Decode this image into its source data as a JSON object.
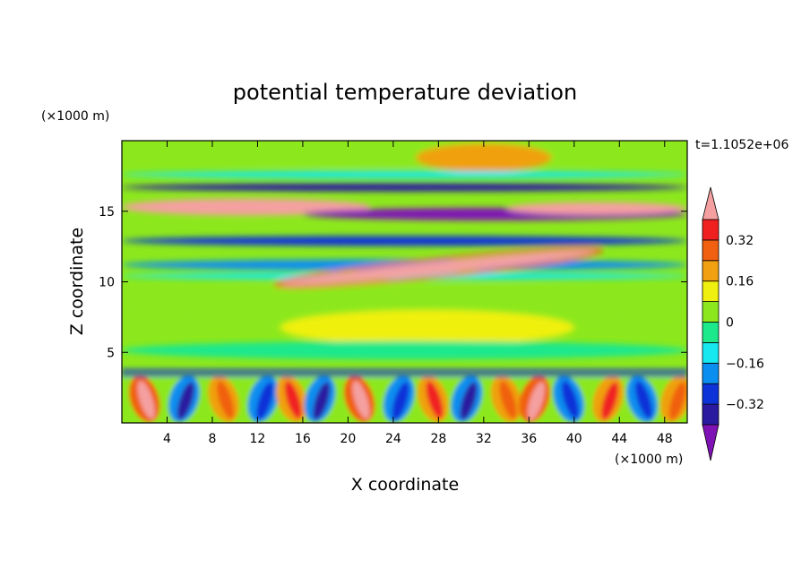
{
  "chart_data": {
    "type": "heatmap",
    "title": "potential temperature deviation",
    "xlabel": "X coordinate",
    "ylabel": "Z coordinate",
    "x_unit": "(×1000 m)",
    "y_unit": "(×1000 m)",
    "time_label": "t=1.1052e+06",
    "xlim": [
      0,
      50
    ],
    "ylim": [
      0,
      20
    ],
    "x_ticks": [
      4,
      8,
      12,
      16,
      20,
      24,
      28,
      32,
      36,
      40,
      44,
      48
    ],
    "y_ticks": [
      5,
      10,
      15
    ],
    "colorbar": {
      "levels": [
        -0.4,
        -0.32,
        -0.24,
        -0.16,
        -0.08,
        0,
        0.08,
        0.16,
        0.24,
        0.32,
        0.4
      ],
      "colors": [
        "#7f12b4",
        "#2a1aa0",
        "#0d32d8",
        "#0a8ef0",
        "#17e8f0",
        "#1ce88c",
        "#8ce81c",
        "#f0f010",
        "#f0a010",
        "#f06010",
        "#f02020",
        "#f4a0a0"
      ],
      "tick_labels": [
        {
          "value": 0.32,
          "label": "0.32"
        },
        {
          "value": 0.16,
          "label": "0.16"
        },
        {
          "value": 0,
          "label": "0"
        },
        {
          "value": -0.16,
          "label": "−0.16"
        },
        {
          "value": -0.32,
          "label": "−0.32"
        }
      ]
    },
    "features": {
      "upper_bands": [
        {
          "z": 17.6,
          "x0": 0,
          "x1": 50,
          "value": -0.1,
          "thickness": 0.5
        },
        {
          "z": 16.7,
          "x0": 0,
          "x1": 50,
          "value": -0.35,
          "thickness": 0.6
        },
        {
          "z": 15.3,
          "x0": 0,
          "x1": 22,
          "value": 0.42,
          "thickness": 1.2
        },
        {
          "z": 14.8,
          "x0": 16,
          "x1": 50,
          "value": -0.42,
          "thickness": 0.9
        },
        {
          "z": 15.2,
          "x0": 34,
          "x1": 50,
          "value": 0.42,
          "thickness": 0.9
        },
        {
          "z": 12.9,
          "x0": 0,
          "x1": 50,
          "value": -0.28,
          "thickness": 0.7
        },
        {
          "z": 11.2,
          "x0": 0,
          "x1": 50,
          "value": -0.2,
          "thickness": 0.8
        },
        {
          "z": 10.4,
          "x0": 0,
          "x1": 50,
          "value": -0.12,
          "thickness": 0.5
        }
      ],
      "plumes": [
        {
          "x": 2.0,
          "value": 0.4
        },
        {
          "x": 5.5,
          "value": -0.35
        },
        {
          "x": 9.0,
          "value": 0.3
        },
        {
          "x": 12.5,
          "value": -0.3
        },
        {
          "x": 15.0,
          "value": 0.35
        },
        {
          "x": 17.5,
          "value": -0.38
        },
        {
          "x": 21.0,
          "value": 0.4
        },
        {
          "x": 24.5,
          "value": -0.3
        },
        {
          "x": 27.5,
          "value": 0.35
        },
        {
          "x": 30.5,
          "value": -0.35
        },
        {
          "x": 34.0,
          "value": 0.3
        },
        {
          "x": 36.5,
          "value": 0.4
        },
        {
          "x": 39.5,
          "value": -0.32
        },
        {
          "x": 43.0,
          "value": 0.35
        },
        {
          "x": 46.0,
          "value": -0.3
        },
        {
          "x": 49.0,
          "value": 0.3
        }
      ]
    }
  }
}
